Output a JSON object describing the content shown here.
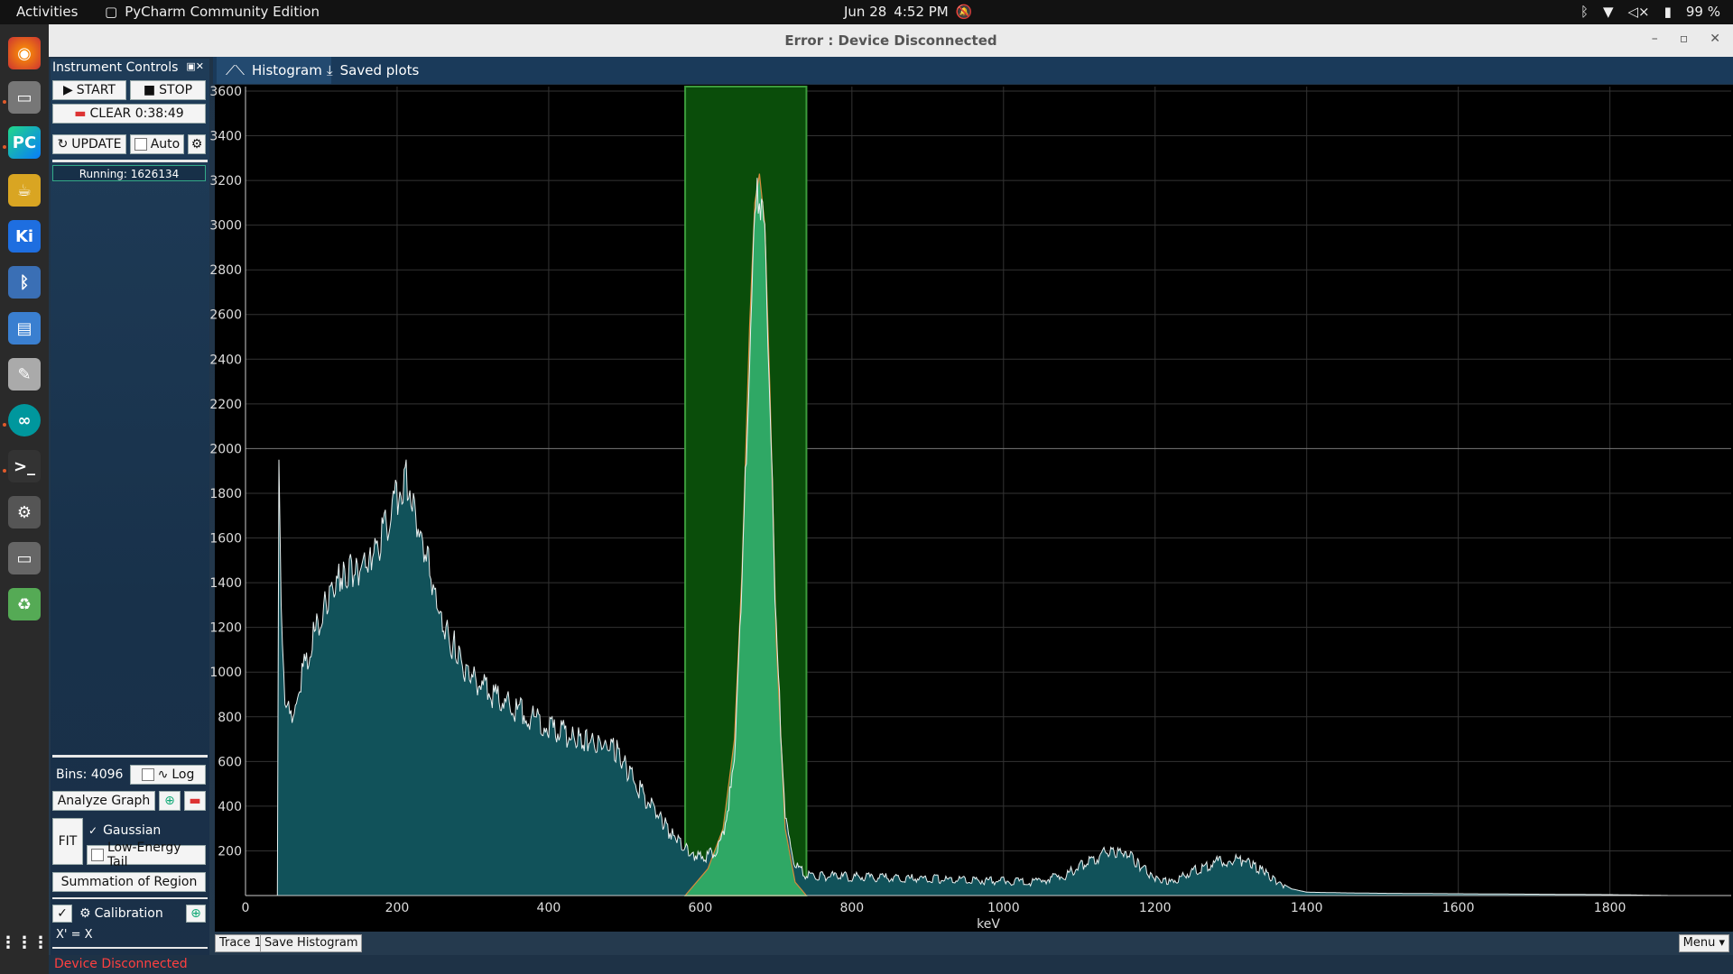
{
  "topbar": {
    "activities": "Activities",
    "app_name": "PyCharm Community Edition",
    "date": "Jun 28",
    "time": "4:52 PM",
    "battery": "99 %"
  },
  "window": {
    "title": "Error : Device Disconnected"
  },
  "panel": {
    "title": "Instrument Controls",
    "start": "START",
    "stop": "STOP",
    "clear": "CLEAR 0:38:49",
    "update": "UPDATE",
    "auto": "Auto",
    "running": "Running: 1626134",
    "bins": "Bins: 4096",
    "log": "Log",
    "analyze": "Analyze Graph",
    "fit": "FIT",
    "gaussian": "Gaussian",
    "low_energy_tail": "Low-Energy Tail",
    "summation": "Summation of Region",
    "calibration": "Calibration",
    "calib_eq": "X' = X"
  },
  "tabs": [
    {
      "label": "Histogram"
    },
    {
      "label": "Saved plots"
    }
  ],
  "bottom": {
    "trace": "Trace 1",
    "save": "Save Histogram",
    "menu": "Menu"
  },
  "status": {
    "text": "Device Disconnected"
  },
  "chart_data": {
    "type": "area",
    "xlabel": "keV",
    "ylabel": "",
    "xlim": [
      0,
      1960
    ],
    "ylim": [
      0,
      3620
    ],
    "xticks": [
      0,
      200,
      400,
      600,
      800,
      1000,
      1200,
      1400,
      1600,
      1800
    ],
    "yticks": [
      200,
      400,
      600,
      800,
      1000,
      1200,
      1400,
      1600,
      1800,
      2000,
      2200,
      2400,
      2600,
      2800,
      3000,
      3200,
      3400,
      3600
    ],
    "grid": true,
    "region": [
      580,
      740
    ],
    "series": [
      {
        "x": [
          42,
          44,
          47,
          52,
          60,
          70,
          85,
          100,
          120,
          140,
          160,
          180,
          195,
          205,
          212,
          220,
          240,
          260,
          280,
          300,
          330,
          360,
          400,
          430,
          450,
          470,
          490,
          510,
          540,
          560,
          580,
          600,
          615,
          630,
          645,
          655,
          665,
          672,
          678,
          685,
          692,
          700,
          712,
          725,
          740,
          800,
          900,
          1000,
          1040,
          1080,
          1110,
          1140,
          1160,
          1180,
          1200,
          1220,
          1250,
          1280,
          1305,
          1320,
          1340,
          1360,
          1380,
          1400,
          1450,
          1500,
          1600,
          1700,
          1800,
          1880
        ],
        "y": [
          0,
          2030,
          1300,
          900,
          850,
          980,
          1150,
          1300,
          1450,
          1500,
          1520,
          1650,
          1800,
          1870,
          1920,
          1800,
          1550,
          1250,
          1120,
          1000,
          920,
          860,
          790,
          740,
          730,
          700,
          680,
          550,
          400,
          300,
          220,
          190,
          200,
          280,
          600,
          1400,
          2500,
          3100,
          3250,
          3000,
          2300,
          1200,
          400,
          150,
          100,
          95,
          85,
          75,
          70,
          100,
          160,
          220,
          210,
          150,
          90,
          70,
          120,
          160,
          180,
          170,
          130,
          70,
          30,
          15,
          12,
          10,
          8,
          6,
          4,
          0
        ]
      },
      {
        "x": [
          580,
          610,
          630,
          645,
          655,
          665,
          672,
          678,
          685,
          692,
          700,
          712,
          725,
          740
        ],
        "y": [
          0,
          120,
          300,
          700,
          1450,
          2550,
          3100,
          3230,
          3000,
          2250,
          1150,
          300,
          60,
          0
        ]
      }
    ]
  }
}
